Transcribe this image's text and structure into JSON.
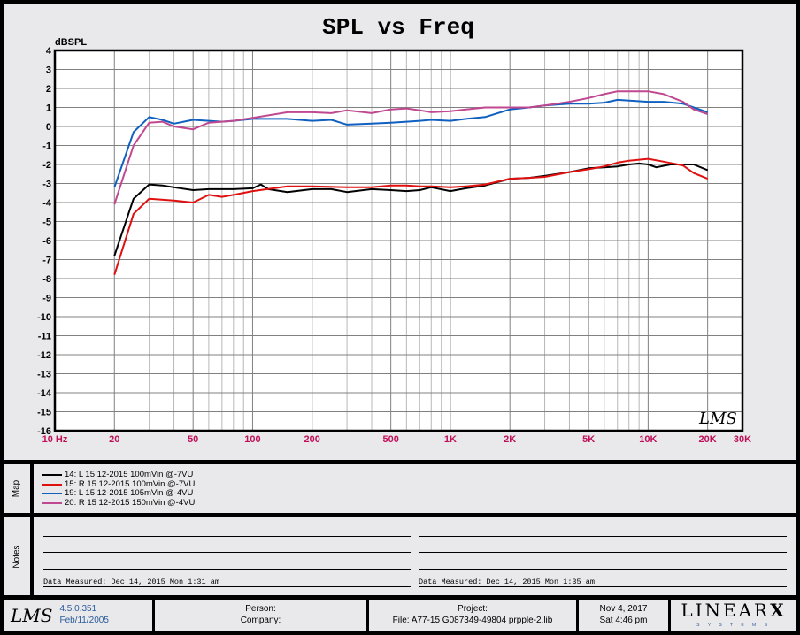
{
  "chart_data": {
    "type": "line",
    "title": "SPL vs Freq",
    "ylabel": "dBSPL",
    "xlabel": "",
    "xscale": "log",
    "xlim": [
      10,
      30000
    ],
    "ylim": [
      -16,
      4
    ],
    "grid": true,
    "yticks": [
      4,
      3,
      2,
      1,
      0,
      -1,
      -2,
      -3,
      -4,
      -5,
      -6,
      -7,
      -8,
      -9,
      -10,
      -11,
      -12,
      -13,
      -14,
      -15,
      -16
    ],
    "xticks": [
      {
        "v": 10,
        "label": "10 Hz"
      },
      {
        "v": 20,
        "label": "20"
      },
      {
        "v": 50,
        "label": "50"
      },
      {
        "v": 100,
        "label": "100"
      },
      {
        "v": 200,
        "label": "200"
      },
      {
        "v": 500,
        "label": "500"
      },
      {
        "v": 1000,
        "label": "1K"
      },
      {
        "v": 2000,
        "label": "2K"
      },
      {
        "v": 5000,
        "label": "5K"
      },
      {
        "v": 10000,
        "label": "10K"
      },
      {
        "v": 20000,
        "label": "20K"
      },
      {
        "v": 30000,
        "label": "30K"
      }
    ],
    "series": [
      {
        "name": "14: L 15  12-2015  100mVin @-7VU",
        "color": "#000000",
        "points": [
          [
            20,
            -6.8
          ],
          [
            25,
            -3.8
          ],
          [
            30,
            -3.05
          ],
          [
            35,
            -3.1
          ],
          [
            40,
            -3.2
          ],
          [
            50,
            -3.35
          ],
          [
            60,
            -3.3
          ],
          [
            80,
            -3.3
          ],
          [
            100,
            -3.25
          ],
          [
            110,
            -3.05
          ],
          [
            120,
            -3.3
          ],
          [
            150,
            -3.45
          ],
          [
            200,
            -3.3
          ],
          [
            250,
            -3.3
          ],
          [
            300,
            -3.45
          ],
          [
            400,
            -3.3
          ],
          [
            500,
            -3.35
          ],
          [
            600,
            -3.4
          ],
          [
            700,
            -3.35
          ],
          [
            800,
            -3.2
          ],
          [
            1000,
            -3.4
          ],
          [
            1200,
            -3.25
          ],
          [
            1500,
            -3.1
          ],
          [
            2000,
            -2.75
          ],
          [
            2500,
            -2.7
          ],
          [
            3000,
            -2.6
          ],
          [
            4000,
            -2.4
          ],
          [
            5000,
            -2.2
          ],
          [
            6000,
            -2.15
          ],
          [
            7000,
            -2.1
          ],
          [
            8000,
            -2.0
          ],
          [
            9000,
            -1.95
          ],
          [
            10000,
            -2.0
          ],
          [
            11000,
            -2.15
          ],
          [
            13000,
            -2.0
          ],
          [
            15000,
            -2.0
          ],
          [
            17000,
            -2.0
          ],
          [
            20000,
            -2.3
          ]
        ]
      },
      {
        "name": "15: R 15  12-2015  100mVin @-7VU",
        "color": "#e01010",
        "points": [
          [
            20,
            -7.8
          ],
          [
            25,
            -4.6
          ],
          [
            30,
            -3.8
          ],
          [
            40,
            -3.9
          ],
          [
            50,
            -4.0
          ],
          [
            60,
            -3.6
          ],
          [
            70,
            -3.7
          ],
          [
            80,
            -3.6
          ],
          [
            100,
            -3.4
          ],
          [
            150,
            -3.15
          ],
          [
            200,
            -3.15
          ],
          [
            300,
            -3.2
          ],
          [
            400,
            -3.2
          ],
          [
            500,
            -3.1
          ],
          [
            600,
            -3.1
          ],
          [
            700,
            -3.15
          ],
          [
            800,
            -3.15
          ],
          [
            1000,
            -3.2
          ],
          [
            1200,
            -3.15
          ],
          [
            1500,
            -3.05
          ],
          [
            2000,
            -2.75
          ],
          [
            2500,
            -2.7
          ],
          [
            3000,
            -2.65
          ],
          [
            4000,
            -2.4
          ],
          [
            5000,
            -2.25
          ],
          [
            6000,
            -2.1
          ],
          [
            7000,
            -1.9
          ],
          [
            8000,
            -1.8
          ],
          [
            10000,
            -1.7
          ],
          [
            12000,
            -1.85
          ],
          [
            15000,
            -2.05
          ],
          [
            17000,
            -2.45
          ],
          [
            20000,
            -2.75
          ]
        ]
      },
      {
        "name": "19: L 15  12-2015  105mVin @-4VU",
        "color": "#1060c0",
        "points": [
          [
            20,
            -3.2
          ],
          [
            25,
            -0.3
          ],
          [
            30,
            0.5
          ],
          [
            35,
            0.35
          ],
          [
            40,
            0.15
          ],
          [
            50,
            0.35
          ],
          [
            60,
            0.3
          ],
          [
            70,
            0.25
          ],
          [
            80,
            0.3
          ],
          [
            100,
            0.4
          ],
          [
            150,
            0.4
          ],
          [
            200,
            0.3
          ],
          [
            250,
            0.35
          ],
          [
            300,
            0.1
          ],
          [
            400,
            0.15
          ],
          [
            500,
            0.2
          ],
          [
            600,
            0.25
          ],
          [
            700,
            0.3
          ],
          [
            800,
            0.35
          ],
          [
            1000,
            0.3
          ],
          [
            1200,
            0.4
          ],
          [
            1500,
            0.5
          ],
          [
            2000,
            0.9
          ],
          [
            2500,
            1.0
          ],
          [
            3000,
            1.1
          ],
          [
            4000,
            1.2
          ],
          [
            5000,
            1.2
          ],
          [
            6000,
            1.25
          ],
          [
            7000,
            1.4
          ],
          [
            10000,
            1.3
          ],
          [
            12000,
            1.3
          ],
          [
            15000,
            1.2
          ],
          [
            17000,
            1.0
          ],
          [
            20000,
            0.75
          ]
        ]
      },
      {
        "name": "20: R 15  12-2015  150mVin @-4VU",
        "color": "#c04890",
        "points": [
          [
            20,
            -4.1
          ],
          [
            25,
            -1.0
          ],
          [
            30,
            0.2
          ],
          [
            35,
            0.25
          ],
          [
            40,
            0.0
          ],
          [
            50,
            -0.15
          ],
          [
            60,
            0.2
          ],
          [
            70,
            0.25
          ],
          [
            80,
            0.3
          ],
          [
            100,
            0.45
          ],
          [
            150,
            0.75
          ],
          [
            200,
            0.75
          ],
          [
            250,
            0.7
          ],
          [
            300,
            0.85
          ],
          [
            400,
            0.7
          ],
          [
            500,
            0.9
          ],
          [
            600,
            0.95
          ],
          [
            700,
            0.85
          ],
          [
            800,
            0.75
          ],
          [
            1000,
            0.8
          ],
          [
            1200,
            0.9
          ],
          [
            1500,
            1.0
          ],
          [
            2000,
            1.0
          ],
          [
            2500,
            1.0
          ],
          [
            3000,
            1.1
          ],
          [
            4000,
            1.3
          ],
          [
            5000,
            1.5
          ],
          [
            6000,
            1.7
          ],
          [
            7000,
            1.85
          ],
          [
            8000,
            1.85
          ],
          [
            10000,
            1.85
          ],
          [
            12000,
            1.7
          ],
          [
            15000,
            1.3
          ],
          [
            17000,
            0.9
          ],
          [
            20000,
            0.65
          ]
        ]
      }
    ]
  },
  "colors": {
    "xtick": "#c0105a"
  },
  "watermark": "LMS",
  "map": {
    "label": "Map"
  },
  "notes": {
    "label": "Notes",
    "measured_left": "Data Measured: Dec 14, 2015  Mon  1:31 am",
    "measured_right": "Data Measured: Dec 14, 2015  Mon  1:35 am"
  },
  "footer": {
    "logo": "LMS",
    "version": "4.5.0.351",
    "build_date": "Feb/11/2005",
    "person_label": "Person:",
    "company_label": "Company:",
    "project_label": "Project:",
    "file": "File: A77-15 G087349-49804 prpple-2.lib",
    "date": "Nov  4, 2017",
    "time": "Sat  4:46 pm",
    "brand": "LINEAR",
    "brand_x": "X",
    "brand_sub": "S Y S T E M S"
  }
}
